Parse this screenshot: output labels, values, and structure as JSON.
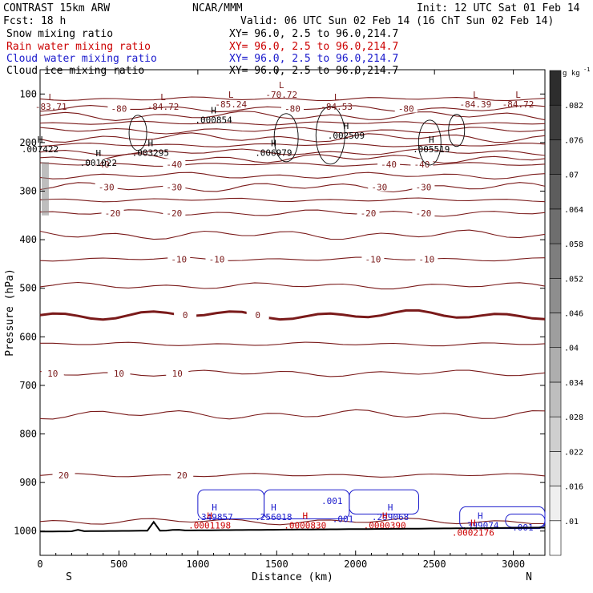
{
  "header": {
    "model": "CONTRAST 15km ARW",
    "center": "NCAR/MMM",
    "init": "Init: 12 UTC Sat 01 Feb 14",
    "fcst": "Fcst:    18 h",
    "valid": "Valid: 06 UTC Sun 02 Feb 14 (16 ChT Sun 02 Feb 14)"
  },
  "fields": [
    {
      "label": "Snow mixing ratio",
      "xy": "XY=  96.0,  2.5 to  96.0,214.7",
      "color": "#000000"
    },
    {
      "label": "Rain water mixing ratio",
      "xy": "XY=  96.0,  2.5 to  96.0,214.7",
      "color": "#cc0000"
    },
    {
      "label": "Cloud water mixing ratio",
      "xy": "XY=  96.0,  2.5 to  96.0,214.7",
      "color": "#1a1acc"
    },
    {
      "label": "Cloud ice mixing ratio",
      "xy": "XY=  96.0,  2.5 to  96.0,214.7",
      "color": "#000000"
    }
  ],
  "colors": {
    "temperature": "#7a1a1a",
    "rain": "#cc0000",
    "cloud": "#1a1acc",
    "terrain": "#000000"
  },
  "chart_data": {
    "type": "line",
    "xlabel": "Distance (km)",
    "ylabel": "Pressure (hPa)",
    "xlim": [
      0,
      3200
    ],
    "ylim": [
      1050,
      50
    ],
    "x_ticks": [
      0,
      500,
      1000,
      1500,
      2000,
      2500,
      3000
    ],
    "y_ticks": [
      100,
      200,
      300,
      400,
      500,
      600,
      700,
      800,
      900,
      1000
    ],
    "x_end_labels": {
      "left": "S",
      "right": "N"
    },
    "colorbar": {
      "unit": "g kg",
      "unit_exp": "-1",
      "ticks": [
        ".01",
        ".016",
        ".022",
        ".028",
        ".034",
        ".04",
        ".046",
        ".052",
        ".058",
        ".064",
        ".07",
        ".076",
        ".082"
      ]
    },
    "temperature_isotherms": [
      {
        "level": -80,
        "p": 130,
        "labels": [
          {
            "x": 500,
            "text": "-80"
          },
          {
            "x": 1600,
            "text": "-80"
          },
          {
            "x": 2320,
            "text": "-80"
          }
        ]
      },
      {
        "level": -40,
        "p": 245,
        "labels": [
          {
            "x": 390,
            "text": "-40"
          },
          {
            "x": 850,
            "text": "-40"
          },
          {
            "x": 2210,
            "text": "-40"
          },
          {
            "x": 2420,
            "text": "-40"
          }
        ]
      },
      {
        "level": -30,
        "p": 292,
        "labels": [
          {
            "x": 420,
            "text": "-30"
          },
          {
            "x": 850,
            "text": "-30"
          },
          {
            "x": 2150,
            "text": "-30"
          },
          {
            "x": 2430,
            "text": "-30"
          }
        ]
      },
      {
        "level": -20,
        "p": 345,
        "labels": [
          {
            "x": 460,
            "text": "-20"
          },
          {
            "x": 850,
            "text": "-20"
          },
          {
            "x": 2080,
            "text": "-20"
          },
          {
            "x": 2430,
            "text": "-20"
          }
        ]
      },
      {
        "level": -10,
        "p": 440,
        "labels": [
          {
            "x": 880,
            "text": "-10"
          },
          {
            "x": 1120,
            "text": "-10"
          },
          {
            "x": 2110,
            "text": "-10"
          },
          {
            "x": 2450,
            "text": "-10"
          }
        ]
      },
      {
        "level": 0,
        "p": 555,
        "labels": [
          {
            "x": 920,
            "text": "0"
          },
          {
            "x": 1380,
            "text": "0"
          }
        ]
      },
      {
        "level": 10,
        "p": 675,
        "labels": [
          {
            "x": 80,
            "text": "10"
          },
          {
            "x": 500,
            "text": "10"
          },
          {
            "x": 870,
            "text": "10"
          }
        ]
      },
      {
        "level": 20,
        "p": 885,
        "labels": [
          {
            "x": 150,
            "text": "20"
          },
          {
            "x": 900,
            "text": "20"
          }
        ]
      }
    ],
    "highs_lows": [
      {
        "type": "L",
        "x": 70,
        "p": 113,
        "value": "-83.71",
        "color": "#7a1a1a"
      },
      {
        "type": "L",
        "x": 780,
        "p": 113,
        "value": "-84.72",
        "color": "#7a1a1a"
      },
      {
        "type": "L",
        "x": 1210,
        "p": 108,
        "value": "-85.24",
        "color": "#7a1a1a"
      },
      {
        "type": "L",
        "x": 1530,
        "p": 88,
        "value": "-70.72",
        "color": "#7a1a1a"
      },
      {
        "type": "L",
        "x": 1880,
        "p": 113,
        "value": "-84.53",
        "color": "#7a1a1a"
      },
      {
        "type": "L",
        "x": 2760,
        "p": 108,
        "value": "-84.39",
        "color": "#7a1a1a"
      },
      {
        "type": "L",
        "x": 3030,
        "p": 108,
        "value": "-84.72",
        "color": "#7a1a1a"
      },
      {
        "type": "H",
        "x": 1100,
        "p": 140,
        "value": ".000854",
        "color": "#000000"
      },
      {
        "type": "H",
        "x": 1940,
        "p": 172,
        "value": ".002509",
        "color": "#000000"
      },
      {
        "type": "H",
        "x": 0,
        "p": 200,
        "value": ".007422",
        "color": "#000000"
      },
      {
        "type": "H",
        "x": 700,
        "p": 208,
        "value": ".003295",
        "color": "#000000"
      },
      {
        "type": "H",
        "x": 370,
        "p": 228,
        "value": ".001022",
        "color": "#000000"
      },
      {
        "type": "H",
        "x": 1480,
        "p": 208,
        "value": ".006979",
        "color": "#000000"
      },
      {
        "type": "H",
        "x": 2480,
        "p": 200,
        "value": ".005519",
        "color": "#000000"
      },
      {
        "type": "H",
        "x": 1105,
        "p": 958,
        "value": ".349857",
        "color": "#1a1acc"
      },
      {
        "type": "H",
        "x": 1480,
        "p": 958,
        "value": ".256018",
        "color": "#1a1acc"
      },
      {
        "type": "H",
        "x": 2220,
        "p": 958,
        "value": ".299068",
        "color": "#1a1acc"
      },
      {
        "type": "H",
        "x": 2790,
        "p": 975,
        "value": ".399074",
        "color": "#1a1acc"
      },
      {
        "type": "H",
        "x": 1075,
        "p": 975,
        "value": ".0001198",
        "color": "#cc0000"
      },
      {
        "type": "H",
        "x": 1680,
        "p": 975,
        "value": ".0000830",
        "color": "#cc0000"
      },
      {
        "type": "H",
        "x": 2185,
        "p": 975,
        "value": ".0000390",
        "color": "#cc0000"
      },
      {
        "type": "H",
        "x": 2745,
        "p": 990,
        "value": ".0002176",
        "color": "#cc0000"
      }
    ],
    "cloud_labels": [
      {
        "x": 1850,
        "p": 938,
        "text": ".001"
      },
      {
        "x": 1920,
        "p": 975,
        "text": ".001"
      },
      {
        "x": 3060,
        "p": 992,
        "text": ".001"
      }
    ]
  }
}
